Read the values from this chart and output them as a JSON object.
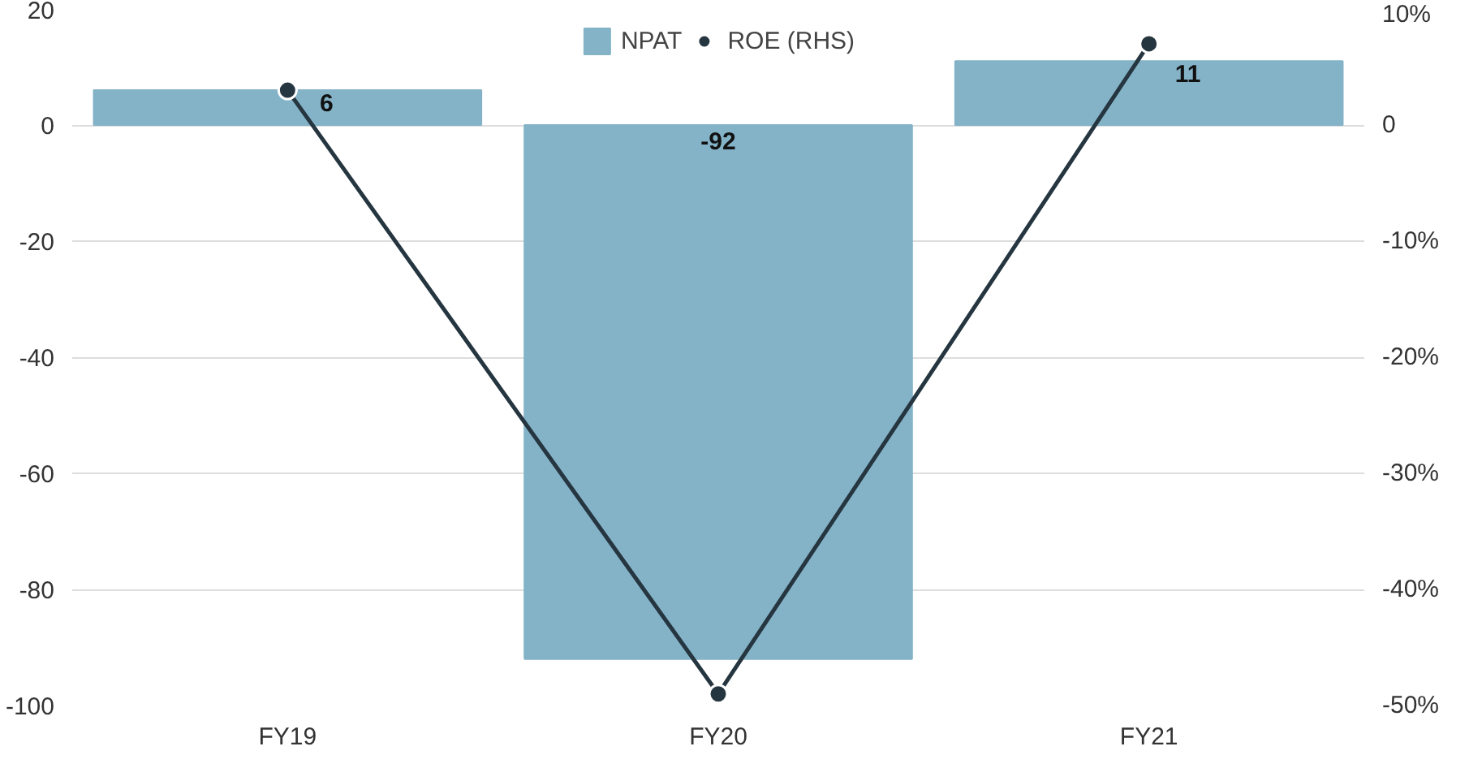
{
  "chart_data": {
    "type": "bar",
    "categories": [
      "FY19",
      "FY20",
      "FY21"
    ],
    "series": [
      {
        "name": "NPAT",
        "color": "#84b3c8",
        "values": [
          6,
          -92,
          11
        ]
      },
      {
        "name": "ROE (RHS)",
        "type": "line",
        "axis": "y2",
        "color": "#263640",
        "values": [
          3,
          -49,
          7
        ]
      }
    ],
    "value_labels": [
      "6",
      "-92",
      "11"
    ],
    "ylim": [
      -100,
      20
    ],
    "yticks": [
      -100,
      -80,
      -60,
      -40,
      -20,
      0,
      20
    ],
    "y2lim": [
      -50,
      10
    ],
    "y2ticks": [
      {
        "value": -50,
        "label": "-50%"
      },
      {
        "value": -40,
        "label": "-40%"
      },
      {
        "value": -30,
        "label": "-30%"
      },
      {
        "value": -20,
        "label": "-20%"
      },
      {
        "value": -10,
        "label": "-10%"
      },
      {
        "value": 0,
        "label": "0"
      },
      {
        "value": 10,
        "label": "10%"
      }
    ],
    "grid": "y",
    "legend": "top",
    "marker": "circle",
    "line_style": "solid"
  }
}
